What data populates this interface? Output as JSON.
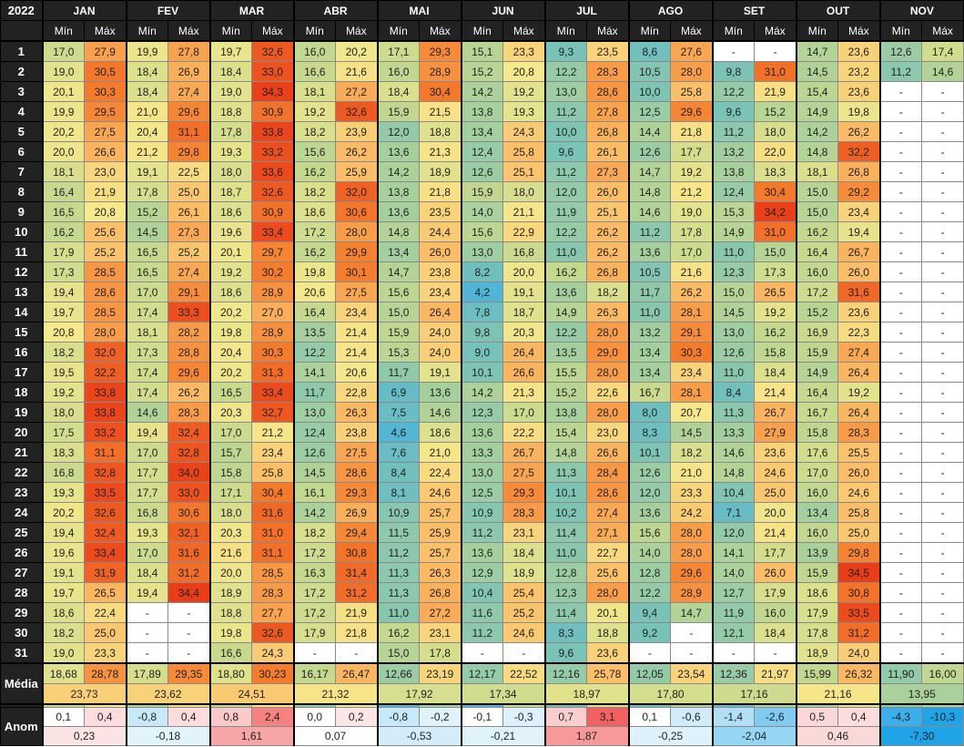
{
  "year": "2022",
  "min_label": "Mín",
  "max_label": "Máx",
  "months": [
    "JAN",
    "FEV",
    "MAR",
    "ABR",
    "MAI",
    "JUN",
    "JUL",
    "AGO",
    "SET",
    "OUT",
    "NOV"
  ],
  "day_labels": [
    "1",
    "2",
    "3",
    "4",
    "5",
    "6",
    "7",
    "8",
    "9",
    "10",
    "11",
    "12",
    "13",
    "14",
    "15",
    "16",
    "17",
    "18",
    "19",
    "20",
    "21",
    "22",
    "23",
    "24",
    "25",
    "26",
    "27",
    "28",
    "29",
    "30",
    "31"
  ],
  "days": [
    [
      "17,0",
      "27,9",
      "19,9",
      "27,8",
      "19,7",
      "32,6",
      "16,0",
      "20,2",
      "17,1",
      "29,3",
      "15,1",
      "23,3",
      "9,3",
      "23,5",
      "8,6",
      "27,6",
      "-",
      "-",
      "14,7",
      "23,6",
      "12,6",
      "17,4"
    ],
    [
      "19,0",
      "30,5",
      "18,4",
      "26,9",
      "18,4",
      "33,0",
      "16,6",
      "21,6",
      "16,0",
      "28,9",
      "15,2",
      "20,8",
      "12,2",
      "28,3",
      "10,5",
      "28,0",
      "9,8",
      "31,0",
      "14,5",
      "23,2",
      "11,2",
      "14,6"
    ],
    [
      "20,1",
      "30,3",
      "18,4",
      "27,4",
      "19,0",
      "34,3",
      "18,1",
      "27,2",
      "18,4",
      "30,4",
      "14,2",
      "19,2",
      "13,0",
      "28,6",
      "10,0",
      "25,8",
      "12,2",
      "21,9",
      "15,4",
      "23,6",
      "-",
      "-"
    ],
    [
      "19,9",
      "29,5",
      "21,0",
      "29,6",
      "18,8",
      "30,9",
      "19,2",
      "32,6",
      "15,9",
      "21,5",
      "13,8",
      "19,3",
      "11,2",
      "27,8",
      "12,5",
      "29,6",
      "9,6",
      "15,2",
      "14,9",
      "19,8",
      "-",
      "-"
    ],
    [
      "20,2",
      "27,5",
      "20,4",
      "31,1",
      "17,8",
      "33,8",
      "18,2",
      "23,9",
      "12,0",
      "18,8",
      "13,4",
      "24,3",
      "10,0",
      "26,8",
      "14,4",
      "21,8",
      "11,2",
      "18,0",
      "14,2",
      "26,2",
      "-",
      "-"
    ],
    [
      "20,0",
      "26,6",
      "21,2",
      "29,8",
      "19,3",
      "33,2",
      "15,6",
      "26,2",
      "13,6",
      "21,3",
      "12,4",
      "25,8",
      "9,6",
      "26,1",
      "12,6",
      "17,7",
      "13,2",
      "22,0",
      "14,8",
      "32,2",
      "-",
      "-"
    ],
    [
      "18,1",
      "23,0",
      "19,1",
      "22,5",
      "18,0",
      "33,6",
      "16,2",
      "25,9",
      "14,2",
      "18,9",
      "12,6",
      "25,1",
      "11,2",
      "27,3",
      "14,7",
      "19,2",
      "13,8",
      "18,3",
      "18,1",
      "26,8",
      "-",
      "-"
    ],
    [
      "16,4",
      "21,9",
      "17,8",
      "25,0",
      "18,7",
      "32,6",
      "18,2",
      "32,0",
      "13,8",
      "21,8",
      "15,9",
      "18,0",
      "12,0",
      "26,0",
      "14,8",
      "21,2",
      "12,4",
      "30,4",
      "15,0",
      "29,2",
      "-",
      "-"
    ],
    [
      "16,5",
      "20,8",
      "15,2",
      "26,1",
      "18,6",
      "30,9",
      "18,6",
      "30,6",
      "13,6",
      "23,5",
      "14,0",
      "21,1",
      "11,9",
      "25,1",
      "14,6",
      "19,0",
      "15,3",
      "34,2",
      "15,0",
      "23,4",
      "-",
      "-"
    ],
    [
      "16,2",
      "25,6",
      "14,5",
      "27,3",
      "19,6",
      "33,4",
      "17,2",
      "28,0",
      "14,8",
      "24,4",
      "15,6",
      "22,9",
      "12,2",
      "26,2",
      "11,2",
      "17,8",
      "14,9",
      "31,0",
      "16,2",
      "19,4",
      "-",
      "-"
    ],
    [
      "17,9",
      "25,2",
      "16,5",
      "25,2",
      "20,1",
      "29,7",
      "16,2",
      "29,9",
      "13,4",
      "26,0",
      "13,0",
      "16,8",
      "11,0",
      "26,2",
      "13,6",
      "17,0",
      "11,0",
      "15,0",
      "16,4",
      "26,7",
      "-",
      "-"
    ],
    [
      "17,3",
      "28,5",
      "16,5",
      "27,4",
      "19,2",
      "30,2",
      "19,8",
      "30,1",
      "14,7",
      "23,8",
      "8,2",
      "20,0",
      "16,2",
      "26,8",
      "10,5",
      "21,6",
      "12,3",
      "17,3",
      "16,0",
      "26,0",
      "-",
      "-"
    ],
    [
      "19,4",
      "28,6",
      "17,0",
      "29,1",
      "18,6",
      "28,9",
      "20,6",
      "27,5",
      "15,6",
      "23,4",
      "4,2",
      "19,1",
      "13,6",
      "18,2",
      "11,7",
      "26,2",
      "15,0",
      "26,5",
      "17,2",
      "31,6",
      "-",
      "-"
    ],
    [
      "19,7",
      "28,5",
      "17,4",
      "33,3",
      "20,2",
      "27,0",
      "16,4",
      "23,4",
      "15,0",
      "26,4",
      "7,8",
      "18,7",
      "14,9",
      "26,3",
      "11,0",
      "28,1",
      "14,5",
      "19,2",
      "15,2",
      "23,6",
      "-",
      "-"
    ],
    [
      "20,8",
      "28,0",
      "18,1",
      "28,2",
      "19,8",
      "28,9",
      "13,5",
      "21,4",
      "15,9",
      "24,0",
      "9,8",
      "20,3",
      "12,2",
      "28,0",
      "13,2",
      "29,1",
      "13,0",
      "16,2",
      "16,9",
      "22,3",
      "-",
      "-"
    ],
    [
      "18,2",
      "32,0",
      "17,3",
      "28,8",
      "20,4",
      "30,3",
      "12,2",
      "21,4",
      "15,3",
      "24,0",
      "9,0",
      "26,4",
      "13,5",
      "29,0",
      "13,4",
      "30,3",
      "12,6",
      "15,8",
      "15,9",
      "27,4",
      "-",
      "-"
    ],
    [
      "19,5",
      "32,2",
      "17,4",
      "29,6",
      "20,2",
      "31,3",
      "14,1",
      "20,6",
      "11,7",
      "19,1",
      "10,1",
      "26,6",
      "15,5",
      "28,0",
      "13,4",
      "23,4",
      "11,0",
      "18,4",
      "14,9",
      "26,4",
      "-",
      "-"
    ],
    [
      "19,2",
      "33,8",
      "17,4",
      "26,2",
      "16,5",
      "33,4",
      "11,7",
      "22,8",
      "6,9",
      "13,6",
      "14,2",
      "21,3",
      "15,2",
      "22,6",
      "16,7",
      "28,1",
      "8,4",
      "21,4",
      "16,4",
      "19,2",
      "-",
      "-"
    ],
    [
      "18,0",
      "33,8",
      "14,6",
      "28,3",
      "20,3",
      "32,7",
      "13,0",
      "26,3",
      "7,5",
      "14,6",
      "12,3",
      "17,0",
      "13,8",
      "28,0",
      "8,0",
      "20,7",
      "11,3",
      "26,7",
      "16,7",
      "26,4",
      "-",
      "-"
    ],
    [
      "17,5",
      "33,2",
      "19,4",
      "32,4",
      "17,0",
      "21,2",
      "12,4",
      "23,8",
      "4,6",
      "18,6",
      "13,6",
      "22,2",
      "15,4",
      "23,0",
      "8,3",
      "14,5",
      "13,3",
      "27,9",
      "15,8",
      "28,3",
      "-",
      "-"
    ],
    [
      "18,3",
      "31,1",
      "17,0",
      "32,8",
      "15,7",
      "23,4",
      "12,6",
      "27,5",
      "7,6",
      "21,0",
      "13,3",
      "26,7",
      "14,8",
      "26,6",
      "10,1",
      "18,2",
      "14,6",
      "23,6",
      "17,6",
      "25,5",
      "-",
      "-"
    ],
    [
      "16,8",
      "32,8",
      "17,7",
      "34,0",
      "15,8",
      "25,8",
      "14,5",
      "28,6",
      "8,4",
      "22,4",
      "13,0",
      "27,5",
      "11,3",
      "28,4",
      "12,6",
      "21,0",
      "14,8",
      "24,6",
      "17,0",
      "26,0",
      "-",
      "-"
    ],
    [
      "19,3",
      "33,5",
      "17,7",
      "33,0",
      "17,1",
      "30,4",
      "16,1",
      "29,3",
      "8,1",
      "24,6",
      "12,5",
      "29,3",
      "10,1",
      "28,6",
      "12,0",
      "23,3",
      "10,4",
      "25,0",
      "16,0",
      "24,6",
      "-",
      "-"
    ],
    [
      "20,2",
      "32,6",
      "16,8",
      "30,6",
      "18,0",
      "31,6",
      "14,2",
      "26,9",
      "10,9",
      "25,7",
      "10,9",
      "28,3",
      "10,2",
      "27,4",
      "13,6",
      "24,2",
      "7,1",
      "20,0",
      "13,4",
      "25,8",
      "-",
      "-"
    ],
    [
      "19,4",
      "32,4",
      "19,3",
      "32,1",
      "20,3",
      "31,0",
      "18,2",
      "29,4",
      "11,5",
      "25,9",
      "11,2",
      "23,1",
      "11,4",
      "27,1",
      "15,6",
      "28,0",
      "12,0",
      "21,4",
      "16,0",
      "25,0",
      "-",
      "-"
    ],
    [
      "19,6",
      "33,4",
      "17,0",
      "31,6",
      "21,6",
      "31,1",
      "17,2",
      "30,8",
      "11,2",
      "25,7",
      "13,6",
      "18,4",
      "11,0",
      "22,7",
      "14,0",
      "28,0",
      "14,1",
      "17,7",
      "13,9",
      "29,8",
      "-",
      "-"
    ],
    [
      "19,1",
      "31,9",
      "18,4",
      "31,2",
      "20,0",
      "28,5",
      "16,3",
      "31,4",
      "11,3",
      "26,3",
      "12,9",
      "18,9",
      "12,8",
      "25,6",
      "12,8",
      "29,6",
      "14,0",
      "26,0",
      "15,9",
      "34,5",
      "-",
      "-"
    ],
    [
      "19,7",
      "26,5",
      "19,4",
      "34,4",
      "18,9",
      "28,3",
      "17,2",
      "31,2",
      "11,3",
      "26,8",
      "10,4",
      "25,4",
      "12,3",
      "28,0",
      "12,2",
      "28,9",
      "12,7",
      "17,9",
      "18,6",
      "30,8",
      "-",
      "-"
    ],
    [
      "18,6",
      "22,4",
      "-",
      "-",
      "18,8",
      "27,7",
      "17,2",
      "21,9",
      "11,0",
      "27,2",
      "11,6",
      "25,2",
      "11,4",
      "20,1",
      "9,4",
      "14,7",
      "11,9",
      "16,0",
      "17,9",
      "33,5",
      "-",
      "-"
    ],
    [
      "18,2",
      "25,0",
      "-",
      "-",
      "19,8",
      "32,6",
      "17,9",
      "21,8",
      "16,2",
      "23,1",
      "11,2",
      "24,6",
      "8,3",
      "18,8",
      "9,2",
      "-",
      "12,1",
      "18,4",
      "17,8",
      "31,2",
      "-",
      "-"
    ],
    [
      "19,0",
      "23,3",
      "-",
      "-",
      "16,6",
      "24,3",
      "-",
      "-",
      "15,0",
      "17,8",
      "-",
      "-",
      "9,6",
      "23,6",
      "-",
      "-",
      "-",
      "-",
      "18,9",
      "24,0",
      "-",
      "-"
    ]
  ],
  "media_label": "Média",
  "media": [
    "18,68",
    "28,78",
    "17,89",
    "29,35",
    "18,80",
    "30,23",
    "16,17",
    "26,47",
    "12,66",
    "23,19",
    "12,17",
    "22,52",
    "12,16",
    "25,78",
    "12,05",
    "23,54",
    "12,36",
    "21,97",
    "15,99",
    "26,32",
    "11,90",
    "16,00"
  ],
  "media_overall": [
    "23,73",
    "23,62",
    "24,51",
    "21,32",
    "17,92",
    "17,34",
    "18,97",
    "17,80",
    "17,16",
    "21,16",
    "13,95"
  ],
  "menor_label": "Menor",
  "menor": [
    "16,2",
    "20,8",
    "14,5",
    "22,5",
    "15,7",
    "21,2",
    "11,7",
    "20,2",
    "4,6",
    "13,6",
    "4,2",
    "16,8",
    "8,3",
    "18,2",
    "8,0",
    "14,5",
    "7,1",
    "15,0",
    "13,4",
    "19,2",
    "11,2",
    "14,6"
  ],
  "maior_label": "Maior",
  "maior": [
    "20,8",
    "33,8",
    "21,2",
    "34,4",
    "21,6",
    "34,3",
    "20,6",
    "32,6",
    "18,4",
    "30,4",
    "15,9",
    "29,3",
    "16,2",
    "29,0",
    "16,7",
    "30,3",
    "15,3",
    "34,2",
    "18,9",
    "34,5",
    "12,6",
    "17,4"
  ],
  "anom_label": "Anom",
  "anom": [
    "0,1",
    "0,4",
    "-0,8",
    "0,4",
    "0,8",
    "2,4",
    "0,0",
    "0,2",
    "-0,8",
    "-0,2",
    "-0,1",
    "-0,3",
    "0,7",
    "3,1",
    "0,1",
    "-0,6",
    "-1,4",
    "-2,6",
    "0,5",
    "0,4",
    "-4,3",
    "-10,3"
  ],
  "anom_overall": [
    "0,23",
    "-0,18",
    "1,61",
    "0,07",
    "-0,53",
    "-0,21",
    "1,87",
    "-0,25",
    "-2,04",
    "0,46",
    "-7,30"
  ],
  "colors": {
    "header_bg": "#222222",
    "header_text": "#ffffff",
    "cold": "#4fb4d8",
    "hot": "#ec3d1c"
  }
}
